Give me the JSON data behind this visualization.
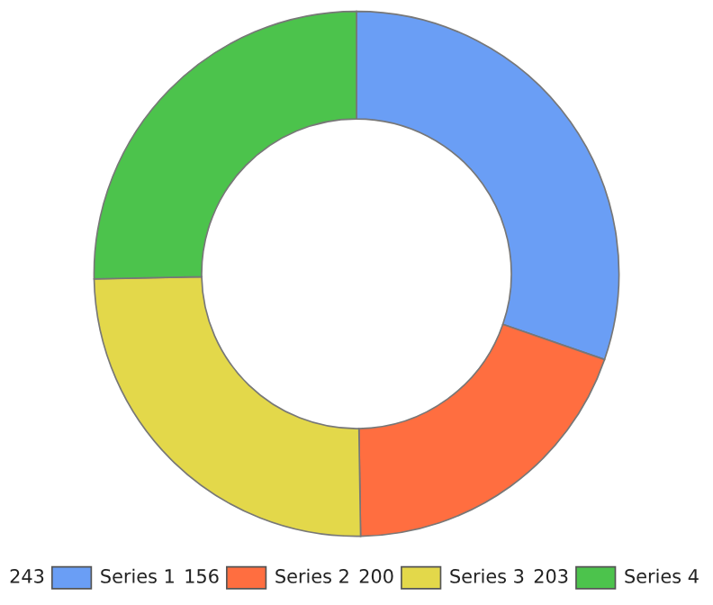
{
  "chart_data": {
    "type": "donut",
    "categories": [
      "Series 1",
      "Series 2",
      "Series 3",
      "Series 4"
    ],
    "values": [
      243,
      156,
      200,
      203
    ],
    "colors": [
      "#6a9ef5",
      "#ff6e40",
      "#e3d84a",
      "#4cc34c"
    ],
    "data_labels": true,
    "legend": "bottom"
  }
}
